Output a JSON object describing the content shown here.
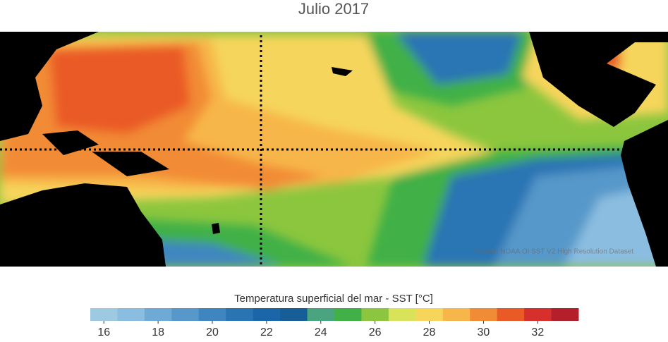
{
  "title": "Julio 2017",
  "source": "Fuente: NOAA OI SST V2 High Resolution Dataset",
  "colorbar": {
    "label": "Temperatura superficial del mar - SST  [°C]",
    "lim": [
      15.5,
      33.5
    ],
    "ticks": [
      16,
      18,
      20,
      22,
      24,
      26,
      28,
      30,
      32
    ],
    "colors": [
      "#9ecae1",
      "#8bbde0",
      "#6eaad6",
      "#5698c9",
      "#3f86c0",
      "#2a74b4",
      "#1b66a8",
      "#175d96",
      "#4aa47f",
      "#41b047",
      "#8cc63e",
      "#d9e35a",
      "#f6d55b",
      "#f7b64a",
      "#f28b35",
      "#ea5a27",
      "#d7302c",
      "#b51f2b"
    ]
  }
}
